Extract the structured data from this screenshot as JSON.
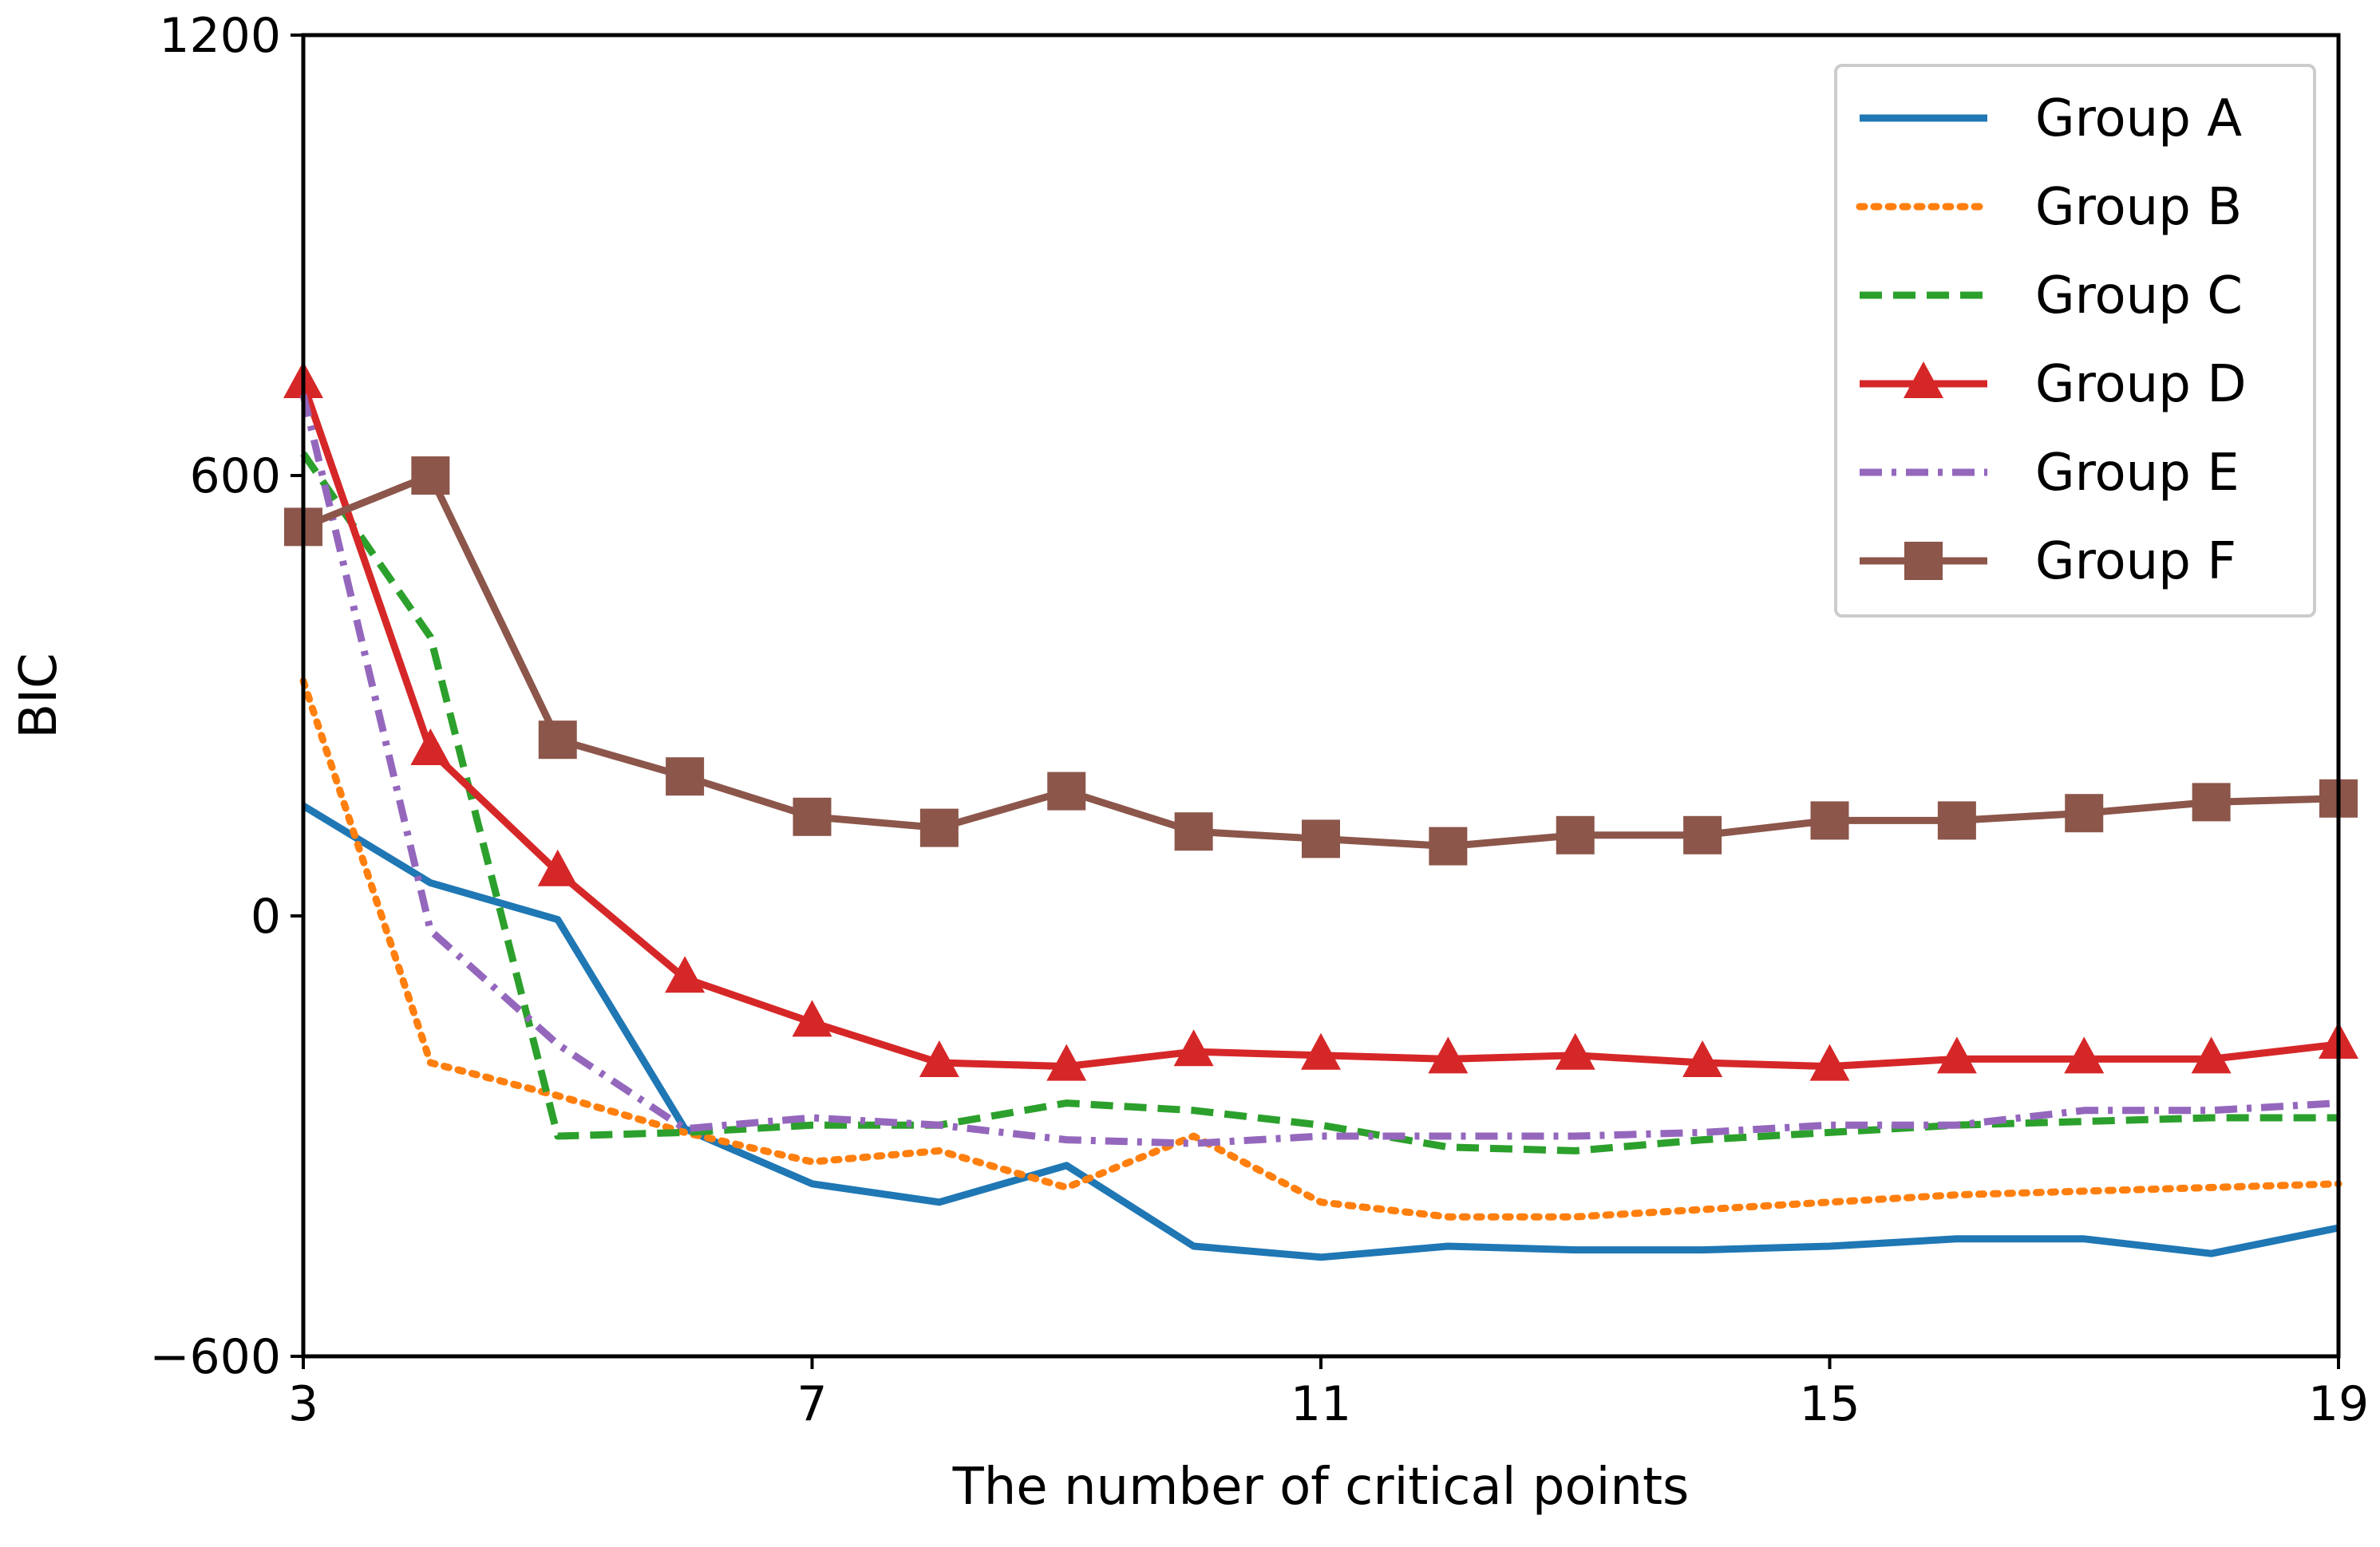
{
  "chart_data": {
    "type": "line",
    "title": "",
    "xlabel": "The number of critical points",
    "ylabel": "BIC",
    "xlim": [
      3,
      19
    ],
    "ylim": [
      -600,
      1200
    ],
    "xticks": [
      3,
      7,
      11,
      15,
      19
    ],
    "yticks": [
      -600,
      0,
      600,
      1200
    ],
    "ytick_labels": [
      "−600",
      "0",
      "600",
      "1200"
    ],
    "legend_position": "top-right",
    "x": [
      3,
      4,
      5,
      6,
      7,
      8,
      9,
      10,
      11,
      12,
      13,
      14,
      15,
      16,
      17,
      18,
      19
    ],
    "series": [
      {
        "name": "Group A",
        "color": "#1f77b4",
        "style": "solid",
        "marker": "none",
        "values": [
          150,
          45,
          -5,
          -290,
          -365,
          -390,
          -340,
          -450,
          -465,
          -450,
          -455,
          -455,
          -450,
          -440,
          -440,
          -460,
          -425
        ]
      },
      {
        "name": "Group B",
        "color": "#ff7f0e",
        "style": "dotted",
        "marker": "none",
        "values": [
          320,
          -200,
          -245,
          -295,
          -335,
          -320,
          -370,
          -300,
          -390,
          -410,
          -410,
          -400,
          -390,
          -380,
          -375,
          -370,
          -365
        ]
      },
      {
        "name": "Group C",
        "color": "#2ca02c",
        "style": "dashed",
        "marker": "none",
        "values": [
          630,
          380,
          -300,
          -295,
          -285,
          -285,
          -255,
          -265,
          -285,
          -315,
          -320,
          -305,
          -295,
          -285,
          -280,
          -275,
          -275
        ]
      },
      {
        "name": "Group D",
        "color": "#d62728",
        "style": "solid",
        "marker": "triangle",
        "values": [
          725,
          225,
          60,
          -85,
          -145,
          -200,
          -205,
          -185,
          -190,
          -195,
          -190,
          -200,
          -205,
          -195,
          -195,
          -195,
          -175
        ]
      },
      {
        "name": "Group E",
        "color": "#9467bd",
        "style": "dashdot",
        "marker": "none",
        "values": [
          710,
          -20,
          -175,
          -290,
          -275,
          -285,
          -305,
          -310,
          -300,
          -300,
          -300,
          -295,
          -285,
          -285,
          -265,
          -265,
          -255
        ]
      },
      {
        "name": "Group F",
        "color": "#8c564b",
        "style": "solid",
        "marker": "square",
        "values": [
          530,
          600,
          240,
          190,
          135,
          120,
          170,
          115,
          105,
          95,
          110,
          110,
          130,
          130,
          140,
          155,
          160
        ]
      }
    ]
  }
}
